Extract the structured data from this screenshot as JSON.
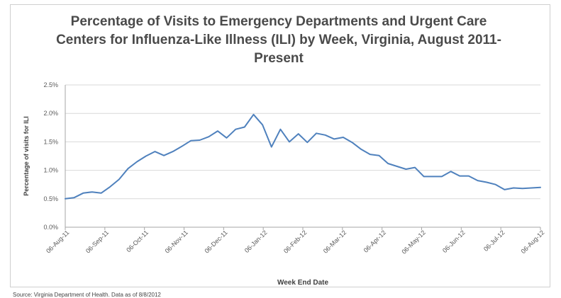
{
  "chart_data": {
    "type": "line",
    "title": "Percentage of Visits to Emergency Departments and Urgent Care Centers for Influenza-Like Illness (ILI) by Week, Virginia, August 2011-Present",
    "xlabel": "Week End Date",
    "ylabel": "Percentage of visits for ILI",
    "ylim": [
      0,
      2.5
    ],
    "yticks": [
      "0.0%",
      "0.5%",
      "1.0%",
      "1.5%",
      "2.0%",
      "2.5%"
    ],
    "xticks": [
      "06-Aug-11",
      "06-Sep-11",
      "06-Oct-11",
      "06-Nov-11",
      "06-Dec-11",
      "06-Jan-12",
      "06-Feb-12",
      "06-Mar-12",
      "06-Apr-12",
      "06-May-12",
      "06-Jun-12",
      "06-Jul-12",
      "06-Aug-12"
    ],
    "grid": true,
    "legend": "none",
    "line_color": "#4f81bd",
    "series": [
      {
        "values": [
          0.5,
          0.52,
          0.6,
          0.62,
          0.6,
          0.71,
          0.84,
          1.03,
          1.15,
          1.25,
          1.33,
          1.26,
          1.33,
          1.42,
          1.52,
          1.53,
          1.59,
          1.69,
          1.57,
          1.72,
          1.76,
          1.98,
          1.8,
          1.41,
          1.72,
          1.5,
          1.64,
          1.49,
          1.65,
          1.62,
          1.55,
          1.58,
          1.49,
          1.37,
          1.28,
          1.26,
          1.12,
          1.07,
          1.02,
          1.05,
          0.89,
          0.89,
          0.89,
          0.98,
          0.9,
          0.9,
          0.82,
          0.79,
          0.75,
          0.66,
          0.69,
          0.68,
          0.69,
          0.7
        ]
      }
    ]
  },
  "source_note": "Source: Virginia Department of Health. Data as of 8/8/2012"
}
